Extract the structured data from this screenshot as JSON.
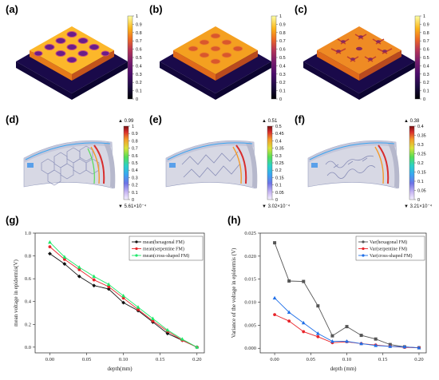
{
  "panels": {
    "a": "(a)",
    "b": "(b)",
    "c": "(c)",
    "d": "(d)",
    "e": "(e)",
    "f": "(f)",
    "g": "(g)",
    "h": "(h)"
  },
  "colorbar_top": {
    "ticks": [
      "1",
      "0.9",
      "0.8",
      "0.7",
      "0.6",
      "0.5",
      "0.4",
      "0.3",
      "0.2",
      "0.1",
      "0"
    ]
  },
  "colorbar_d": {
    "max": "▲ 0.99",
    "min": "▼ 5.61×10⁻⁴",
    "ticks": [
      "1",
      "0.9",
      "0.8",
      "0.7",
      "0.6",
      "0.5",
      "0.4",
      "0.3",
      "0.2",
      "0.1",
      "0"
    ]
  },
  "colorbar_e": {
    "max": "▲ 0.51",
    "min": "▼ 3.02×10⁻⁴",
    "ticks": [
      "0.5",
      "0.45",
      "0.4",
      "0.35",
      "0.3",
      "0.25",
      "0.2",
      "0.15",
      "0.1",
      "0.05",
      "0"
    ]
  },
  "colorbar_f": {
    "max": "▲ 0.38",
    "min": "▼ 3.21×10⁻⁴",
    "ticks": [
      "0.4",
      "0.35",
      "0.3",
      "0.25",
      "0.2",
      "0.15",
      "0.1",
      "0.05",
      "0"
    ]
  },
  "colors": {
    "hexagonal": "#111111",
    "serpentine": "#e8242a",
    "cross": "#1fe86a",
    "cross_h": "#1f6fe8",
    "hex_h": "#555555"
  },
  "chart_data": [
    {
      "type": "line",
      "xlabel": "depth(mm)",
      "ylabel": "mean voltage in epidermis(V)",
      "xlim": [
        -0.02,
        0.21
      ],
      "ylim": [
        -0.05,
        1.0
      ],
      "xticks": [
        "0.00",
        "0.05",
        "0.10",
        "0.15",
        "0.20"
      ],
      "yticks": [
        "0.0",
        "0.2",
        "0.4",
        "0.6",
        "0.8",
        "1.0"
      ],
      "x": [
        0,
        0.02,
        0.04,
        0.06,
        0.08,
        0.1,
        0.12,
        0.14,
        0.16,
        0.18,
        0.2
      ],
      "series": [
        {
          "name": "mean(hexagonal FM)",
          "values": [
            0.82,
            0.73,
            0.62,
            0.54,
            0.51,
            0.39,
            0.32,
            0.22,
            0.12,
            0.06,
            0.0
          ]
        },
        {
          "name": "mean(serpentine FM)",
          "values": [
            0.88,
            0.77,
            0.68,
            0.59,
            0.53,
            0.43,
            0.33,
            0.23,
            0.14,
            0.06,
            0.0
          ]
        },
        {
          "name": "mean(cross-shaped FM)",
          "values": [
            0.92,
            0.79,
            0.7,
            0.62,
            0.55,
            0.45,
            0.35,
            0.25,
            0.15,
            0.07,
            0.0
          ]
        }
      ],
      "legend": "top-right"
    },
    {
      "type": "line",
      "xlabel": "depth (mm)",
      "ylabel": "Variance of the voltage in epidermis (V)",
      "xlim": [
        -0.02,
        0.21
      ],
      "ylim": [
        -0.001,
        0.025
      ],
      "xticks": [
        "0.00",
        "0.05",
        "0.10",
        "0.15",
        "0.20"
      ],
      "yticks": [
        "0.000",
        "0.005",
        "0.010",
        "0.015",
        "0.020",
        "0.025"
      ],
      "x": [
        0,
        0.02,
        0.04,
        0.06,
        0.08,
        0.1,
        0.12,
        0.14,
        0.16,
        0.18,
        0.2
      ],
      "series": [
        {
          "name": "Var(hexagonal FM)",
          "values": [
            0.0229,
            0.0146,
            0.0145,
            0.0092,
            0.0027,
            0.0047,
            0.0028,
            0.002,
            0.0008,
            0.0003,
            0.0001
          ]
        },
        {
          "name": "Var(serpentine FM)",
          "values": [
            0.0073,
            0.0059,
            0.0036,
            0.0025,
            0.0012,
            0.0014,
            0.001,
            0.0007,
            0.0004,
            0.0002,
            0.0001
          ]
        },
        {
          "name": "Var(cross-shaped FM)",
          "values": [
            0.0109,
            0.0078,
            0.0055,
            0.0032,
            0.0015,
            0.0015,
            0.001,
            0.0006,
            0.0004,
            0.0003,
            0.0001
          ]
        }
      ],
      "legend": "top-right"
    }
  ]
}
